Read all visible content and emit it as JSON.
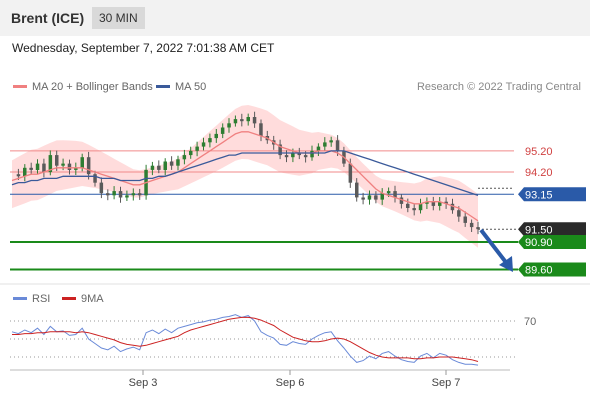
{
  "header": {
    "title": "Brent (ICE)",
    "timeframe": "30 MIN",
    "datetime": "Wednesday, September 7, 2022 7:01:38 AM CET"
  },
  "colors": {
    "candle_up": "#2e7d32",
    "candle_down": "#5a5a5a",
    "ma20": "#f08080",
    "ma50": "#3a5a9a",
    "bollinger_fill": "#ffd6d6",
    "resistance": "#f08a8a",
    "support": "#1a8a1a",
    "pivot": "#2a5aa8",
    "rsi": "#6a8ad8",
    "rsi_ma": "#cc2222",
    "arrow": "#2a5aa8"
  },
  "chart_data": [
    {
      "type": "candlestick",
      "legend": [
        "MA 20 + Bollinger Bands",
        "MA 50"
      ],
      "legend_position": "top-left",
      "credit": "Research © 2022 Trading Central",
      "x_ticks": [
        "Sep 3",
        "Sep 6",
        "Sep 7"
      ],
      "y_range": [
        89.2,
        97.6
      ],
      "levels": [
        {
          "value": 95.2,
          "label": "95.20",
          "kind": "resistance"
        },
        {
          "value": 94.2,
          "label": "94.20",
          "kind": "resistance"
        },
        {
          "value": 93.15,
          "label": "93.15",
          "kind": "pivot"
        },
        {
          "value": 91.5,
          "label": "91.50",
          "kind": "last"
        },
        {
          "value": 90.9,
          "label": "90.90",
          "kind": "support"
        },
        {
          "value": 89.6,
          "label": "89.60",
          "kind": "support"
        }
      ],
      "close_path": [
        94.1,
        94.0,
        94.4,
        94.3,
        94.6,
        94.2,
        95.0,
        94.5,
        94.6,
        94.3,
        94.4,
        94.9,
        94.1,
        93.7,
        93.2,
        93.1,
        93.3,
        93.0,
        93.1,
        93.2,
        93.1,
        94.3,
        94.5,
        94.3,
        94.7,
        94.5,
        94.8,
        95.0,
        95.2,
        95.4,
        95.6,
        95.8,
        96.0,
        96.3,
        96.5,
        96.7,
        96.6,
        96.8,
        96.5,
        95.9,
        95.7,
        95.5,
        95.0,
        94.9,
        95.1,
        95.0,
        94.9,
        95.2,
        95.4,
        95.6,
        95.7,
        95.2,
        94.6,
        93.7,
        93.0,
        92.9,
        93.1,
        92.9,
        93.2,
        93.3,
        93.0,
        92.7,
        92.5,
        92.4,
        92.7,
        92.8,
        92.6,
        92.8,
        92.7,
        92.4,
        92.1,
        91.8,
        91.6,
        91.5
      ],
      "ma20_path": [
        93.8,
        93.9,
        94.0,
        94.1,
        94.1,
        94.2,
        94.3,
        94.4,
        94.4,
        94.4,
        94.4,
        94.4,
        94.3,
        94.2,
        94.1,
        94.0,
        93.9,
        93.8,
        93.7,
        93.6,
        93.6,
        93.7,
        93.8,
        93.9,
        94.0,
        94.1,
        94.2,
        94.4,
        94.6,
        94.8,
        95.0,
        95.2,
        95.4,
        95.6,
        95.8,
        96.0,
        96.1,
        96.1,
        96.0,
        95.9,
        95.8,
        95.6,
        95.4,
        95.3,
        95.2,
        95.1,
        95.1,
        95.1,
        95.2,
        95.2,
        95.2,
        95.1,
        94.9,
        94.6,
        94.3,
        94.0,
        93.7,
        93.4,
        93.2,
        93.1,
        93.0,
        92.9,
        92.8,
        92.7,
        92.7,
        92.8,
        92.8,
        92.8,
        92.7,
        92.6,
        92.5,
        92.3,
        92.1,
        91.9
      ],
      "ma50_path": [
        93.6,
        93.7,
        93.7,
        93.8,
        93.8,
        93.9,
        93.9,
        93.9,
        94.0,
        94.0,
        94.0,
        94.0,
        94.0,
        94.0,
        93.9,
        93.9,
        93.9,
        93.8,
        93.8,
        93.8,
        93.8,
        93.9,
        93.9,
        94.0,
        94.0,
        94.1,
        94.2,
        94.3,
        94.4,
        94.5,
        94.6,
        94.7,
        94.8,
        94.9,
        95.0,
        95.0,
        95.1,
        95.1,
        95.1,
        95.1,
        95.1,
        95.1,
        95.1,
        95.1,
        95.1,
        95.1,
        95.1,
        95.1,
        95.1,
        95.1,
        95.2,
        95.2,
        95.2,
        95.1,
        95.0,
        94.9,
        94.8,
        94.7,
        94.6,
        94.5,
        94.4,
        94.3,
        94.2,
        94.1,
        94.0,
        93.9,
        93.8,
        93.7,
        93.6,
        93.5,
        93.4,
        93.3,
        93.2,
        93.1
      ]
    },
    {
      "type": "line",
      "legend": [
        "RSI",
        "9MA"
      ],
      "legend_position": "top-left",
      "y_range": [
        20,
        80
      ],
      "reference_levels": [
        70,
        50,
        30
      ],
      "y_tick_labels": [
        "70"
      ],
      "rsi_path": [
        58,
        56,
        60,
        57,
        62,
        55,
        64,
        58,
        59,
        54,
        55,
        62,
        50,
        45,
        40,
        38,
        42,
        36,
        39,
        41,
        38,
        57,
        60,
        56,
        61,
        57,
        62,
        64,
        66,
        68,
        69,
        71,
        72,
        74,
        75,
        77,
        74,
        76,
        70,
        58,
        54,
        51,
        44,
        43,
        47,
        45,
        44,
        50,
        54,
        57,
        58,
        48,
        40,
        31,
        24,
        26,
        31,
        28,
        34,
        36,
        31,
        27,
        25,
        24,
        31,
        34,
        29,
        34,
        32,
        27,
        24,
        22,
        22,
        21
      ],
      "ma_path": [
        55,
        55,
        56,
        56,
        57,
        57,
        58,
        58,
        58,
        58,
        57,
        58,
        57,
        55,
        53,
        51,
        49,
        46,
        44,
        43,
        42,
        43,
        45,
        47,
        49,
        51,
        53,
        57,
        60,
        62,
        64,
        66,
        68,
        70,
        72,
        73,
        74,
        74,
        73,
        71,
        68,
        65,
        60,
        56,
        52,
        50,
        48,
        47,
        47,
        48,
        50,
        51,
        50,
        47,
        43,
        39,
        35,
        32,
        30,
        29,
        29,
        29,
        29,
        28,
        28,
        29,
        29,
        30,
        30,
        30,
        29,
        28,
        27,
        25
      ]
    }
  ]
}
